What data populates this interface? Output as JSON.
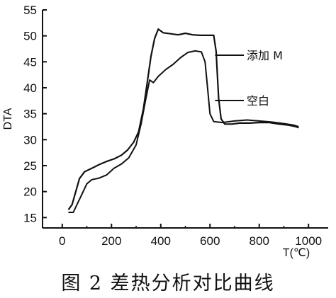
{
  "caption": "图 2   差热分析对比曲线",
  "chart_data": {
    "type": "line",
    "xlabel": "T(℃)",
    "ylabel": "DTA",
    "xlim": [
      -80,
      1080
    ],
    "ylim": [
      13,
      55
    ],
    "x_ticks": [
      0,
      200,
      400,
      600,
      800,
      1000
    ],
    "y_ticks": [
      15,
      20,
      25,
      30,
      35,
      40,
      45,
      50,
      55
    ],
    "grid": false,
    "series": [
      {
        "name": "添加 M",
        "values": [
          [
            25,
            16.5
          ],
          [
            40,
            17.5
          ],
          [
            55,
            20
          ],
          [
            70,
            22.5
          ],
          [
            90,
            23.8
          ],
          [
            120,
            24.5
          ],
          [
            150,
            25.2
          ],
          [
            180,
            25.8
          ],
          [
            210,
            26.3
          ],
          [
            240,
            27
          ],
          [
            265,
            28
          ],
          [
            290,
            29.5
          ],
          [
            310,
            31.5
          ],
          [
            330,
            36
          ],
          [
            345,
            41
          ],
          [
            360,
            46
          ],
          [
            375,
            49.5
          ],
          [
            390,
            51.3
          ],
          [
            410,
            50.6
          ],
          [
            440,
            50.4
          ],
          [
            470,
            50.2
          ],
          [
            500,
            50.5
          ],
          [
            530,
            50.2
          ],
          [
            560,
            50.1
          ],
          [
            590,
            50.1
          ],
          [
            615,
            50.1
          ],
          [
            625,
            47
          ],
          [
            635,
            38
          ],
          [
            645,
            34
          ],
          [
            660,
            33
          ],
          [
            690,
            33
          ],
          [
            720,
            33.2
          ],
          [
            760,
            33.2
          ],
          [
            800,
            33.3
          ],
          [
            840,
            33.3
          ],
          [
            880,
            33
          ],
          [
            920,
            32.8
          ],
          [
            950,
            32.5
          ],
          [
            960,
            32.3
          ]
        ]
      },
      {
        "name": "空白",
        "values": [
          [
            25,
            16
          ],
          [
            45,
            16
          ],
          [
            60,
            17.5
          ],
          [
            80,
            19.5
          ],
          [
            100,
            21.5
          ],
          [
            120,
            22.3
          ],
          [
            150,
            22.6
          ],
          [
            180,
            23.2
          ],
          [
            210,
            24.5
          ],
          [
            240,
            25.3
          ],
          [
            270,
            26.5
          ],
          [
            300,
            29
          ],
          [
            320,
            33
          ],
          [
            340,
            38
          ],
          [
            355,
            41.5
          ],
          [
            370,
            41
          ],
          [
            390,
            42.2
          ],
          [
            420,
            43.5
          ],
          [
            450,
            44.5
          ],
          [
            480,
            45.8
          ],
          [
            510,
            46.8
          ],
          [
            540,
            47.1
          ],
          [
            565,
            46.9
          ],
          [
            580,
            45
          ],
          [
            590,
            40
          ],
          [
            600,
            35
          ],
          [
            615,
            33.5
          ],
          [
            650,
            33.3
          ],
          [
            700,
            33.6
          ],
          [
            750,
            33.8
          ],
          [
            800,
            33.6
          ],
          [
            850,
            33.4
          ],
          [
            900,
            33.1
          ],
          [
            940,
            32.8
          ],
          [
            960,
            32.5
          ]
        ]
      }
    ]
  }
}
